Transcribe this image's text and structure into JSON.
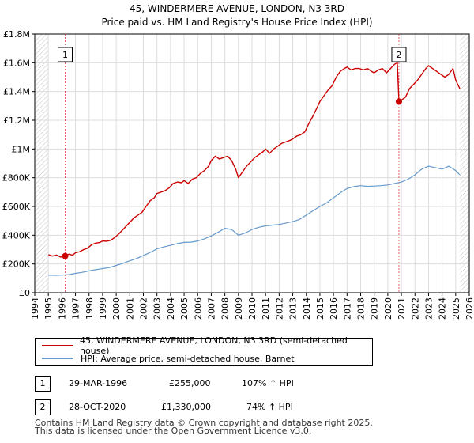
{
  "title_line1": "45, WINDERMERE AVENUE, LONDON, N3 3RD",
  "title_line2": "Price paid vs. HM Land Registry's House Price Index (HPI)",
  "colors": {
    "property": "#cc0000",
    "hpi": "#6699cc",
    "grid": "#dddddd",
    "plot_bg": "#ffffff",
    "hatch": "#888888"
  },
  "chart_data": {
    "type": "line",
    "title": "45, WINDERMERE AVENUE, LONDON, N3 3RD",
    "subtitle": "Price paid vs. HM Land Registry's House Price Index (HPI)",
    "xlabel": "",
    "ylabel": "",
    "xlim": [
      1994.0,
      2026.0
    ],
    "ylim": [
      0,
      1800000
    ],
    "y_ticks": [
      0,
      200000,
      400000,
      600000,
      800000,
      1000000,
      1200000,
      1400000,
      1600000,
      1800000
    ],
    "y_tick_labels": [
      "£0",
      "£200K",
      "£400K",
      "£600K",
      "£800K",
      "£1M",
      "£1.2M",
      "£1.4M",
      "£1.6M",
      "£1.8M"
    ],
    "x_ticks": [
      1994,
      1995,
      1996,
      1997,
      1998,
      1999,
      2000,
      2001,
      2002,
      2003,
      2004,
      2005,
      2006,
      2007,
      2008,
      2009,
      2010,
      2011,
      2012,
      2013,
      2014,
      2015,
      2016,
      2017,
      2018,
      2019,
      2020,
      2021,
      2022,
      2023,
      2024,
      2025,
      2026
    ],
    "x_tick_labels": [
      "1994",
      "1995",
      "1996",
      "1997",
      "1998",
      "1999",
      "2000",
      "2001",
      "2002",
      "2003",
      "2004",
      "2005",
      "2006",
      "2007",
      "2008",
      "2009",
      "2010",
      "2011",
      "2012",
      "2013",
      "2014",
      "2015",
      "2016",
      "2017",
      "2018",
      "2019",
      "2020",
      "2021",
      "2022",
      "2023",
      "2024",
      "2025",
      "2026"
    ],
    "grid": true,
    "legend_position": "below",
    "series": [
      {
        "name": "45, WINDERMERE AVENUE, LONDON, N3 3RD (semi-detached house)",
        "color": "#cc0000",
        "x": [
          1995.0,
          1995.3,
          1995.6,
          1995.9,
          1996.24,
          1996.5,
          1996.8,
          1997.0,
          1997.3,
          1997.6,
          1997.9,
          1998.2,
          1998.5,
          1998.8,
          1999.0,
          1999.3,
          1999.6,
          1999.9,
          2000.2,
          2000.5,
          2000.8,
          2001.0,
          2001.3,
          2001.6,
          2001.9,
          2002.2,
          2002.5,
          2002.8,
          2003.0,
          2003.3,
          2003.6,
          2003.9,
          2004.2,
          2004.5,
          2004.8,
          2005.0,
          2005.3,
          2005.6,
          2005.9,
          2006.2,
          2006.5,
          2006.8,
          2007.0,
          2007.3,
          2007.6,
          2007.9,
          2008.2,
          2008.5,
          2008.8,
          2009.0,
          2009.3,
          2009.6,
          2009.9,
          2010.2,
          2010.5,
          2010.8,
          2011.0,
          2011.3,
          2011.6,
          2011.9,
          2012.2,
          2012.5,
          2012.8,
          2013.0,
          2013.3,
          2013.6,
          2013.9,
          2014.2,
          2014.5,
          2014.8,
          2015.0,
          2015.3,
          2015.6,
          2015.9,
          2016.2,
          2016.5,
          2016.8,
          2017.0,
          2017.3,
          2017.6,
          2017.9,
          2018.2,
          2018.5,
          2018.8,
          2019.0,
          2019.3,
          2019.6,
          2019.9,
          2020.2,
          2020.5,
          2020.7,
          2020.82,
          2021.0,
          2021.3,
          2021.6,
          2021.9,
          2022.2,
          2022.5,
          2022.8,
          2023.0,
          2023.3,
          2023.6,
          2023.9,
          2024.2,
          2024.5,
          2024.8,
          2025.0,
          2025.3
        ],
        "values": [
          265000,
          255000,
          262000,
          248000,
          255000,
          268000,
          262000,
          278000,
          285000,
          300000,
          310000,
          335000,
          345000,
          350000,
          360000,
          358000,
          365000,
          385000,
          410000,
          440000,
          470000,
          490000,
          520000,
          540000,
          560000,
          600000,
          640000,
          660000,
          690000,
          700000,
          710000,
          730000,
          760000,
          770000,
          765000,
          780000,
          760000,
          790000,
          800000,
          830000,
          850000,
          880000,
          920000,
          950000,
          930000,
          940000,
          950000,
          920000,
          860000,
          800000,
          840000,
          880000,
          910000,
          940000,
          960000,
          980000,
          1000000,
          970000,
          1000000,
          1020000,
          1040000,
          1050000,
          1060000,
          1070000,
          1090000,
          1100000,
          1120000,
          1180000,
          1230000,
          1290000,
          1330000,
          1370000,
          1410000,
          1440000,
          1500000,
          1540000,
          1560000,
          1570000,
          1550000,
          1560000,
          1560000,
          1550000,
          1560000,
          1540000,
          1530000,
          1550000,
          1560000,
          1530000,
          1560000,
          1590000,
          1600000,
          1330000,
          1340000,
          1360000,
          1420000,
          1450000,
          1480000,
          1520000,
          1560000,
          1580000,
          1560000,
          1540000,
          1520000,
          1500000,
          1520000,
          1560000,
          1480000,
          1420000
        ]
      },
      {
        "name": "HPI: Average price, semi-detached house, Barnet",
        "color": "#6699cc",
        "x": [
          1995.0,
          1995.5,
          1996.0,
          1996.5,
          1997.0,
          1997.5,
          1998.0,
          1998.5,
          1999.0,
          1999.5,
          2000.0,
          2000.5,
          2001.0,
          2001.5,
          2002.0,
          2002.5,
          2003.0,
          2003.5,
          2004.0,
          2004.5,
          2005.0,
          2005.5,
          2006.0,
          2006.5,
          2007.0,
          2007.5,
          2008.0,
          2008.5,
          2009.0,
          2009.5,
          2010.0,
          2010.5,
          2011.0,
          2011.5,
          2012.0,
          2012.5,
          2013.0,
          2013.5,
          2014.0,
          2014.5,
          2015.0,
          2015.5,
          2016.0,
          2016.5,
          2017.0,
          2017.5,
          2018.0,
          2018.5,
          2019.0,
          2019.5,
          2020.0,
          2020.5,
          2021.0,
          2021.5,
          2022.0,
          2022.5,
          2023.0,
          2023.5,
          2024.0,
          2024.5,
          2025.0,
          2025.3
        ],
        "values": [
          122000,
          121000,
          123000,
          126000,
          135000,
          142000,
          152000,
          160000,
          168000,
          175000,
          190000,
          205000,
          222000,
          238000,
          258000,
          280000,
          305000,
          318000,
          330000,
          342000,
          350000,
          352000,
          360000,
          375000,
          395000,
          420000,
          448000,
          440000,
          400000,
          415000,
          440000,
          455000,
          465000,
          470000,
          475000,
          485000,
          495000,
          510000,
          540000,
          570000,
          600000,
          625000,
          660000,
          695000,
          725000,
          738000,
          745000,
          740000,
          742000,
          745000,
          750000,
          760000,
          770000,
          790000,
          820000,
          860000,
          880000,
          870000,
          860000,
          880000,
          850000,
          820000
        ]
      }
    ],
    "sales": [
      {
        "label": "1",
        "x": 1996.24,
        "value": 255000,
        "date": "29-MAR-1996",
        "price": "£255,000",
        "hpi": "107% ↑ HPI"
      },
      {
        "label": "2",
        "x": 2020.82,
        "value": 1330000,
        "date": "28-OCT-2020",
        "price": "£1,330,000",
        "hpi": "74% ↑ HPI"
      }
    ],
    "hatch_before": 1995.0,
    "hatch_after": 2025.3
  },
  "legend": {
    "property": "45, WINDERMERE AVENUE, LONDON, N3 3RD (semi-detached house)",
    "hpi": "HPI: Average price, semi-detached house, Barnet"
  },
  "sales_table": [
    {
      "num": "1",
      "date": "29-MAR-1996",
      "price": "£255,000",
      "hpi": "107% ↑ HPI"
    },
    {
      "num": "2",
      "date": "28-OCT-2020",
      "price": "£1,330,000",
      "hpi": "74% ↑ HPI"
    }
  ],
  "footer_line1": "Contains HM Land Registry data © Crown copyright and database right 2025.",
  "footer_line2": "This data is licensed under the Open Government Licence v3.0."
}
